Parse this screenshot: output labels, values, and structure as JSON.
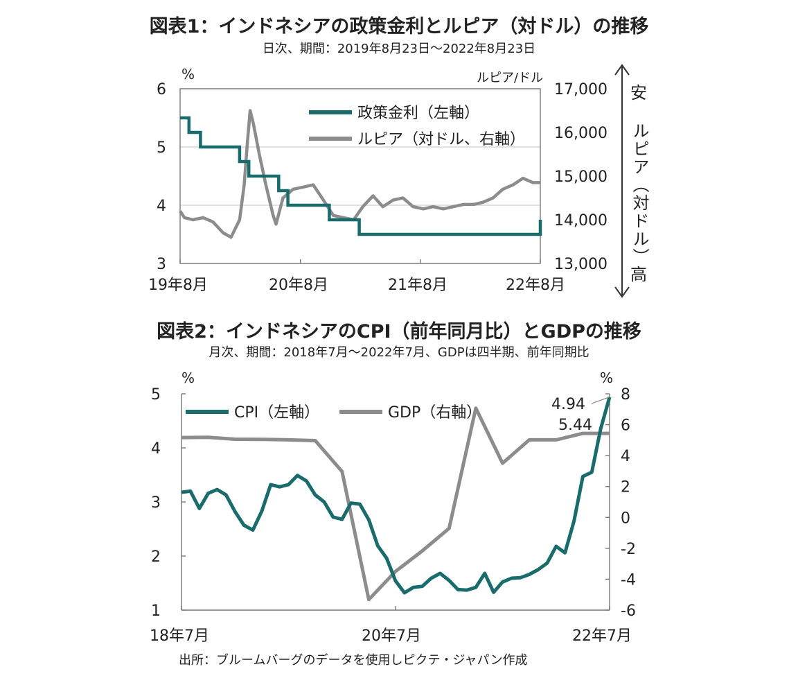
{
  "fig1": {
    "title": "図表1：インドネシアの政策金利とルピア（対ドル）の推移",
    "subtitle": "日次、期間：2019年8月23日～2022年8月23日",
    "chart_data": {
      "type": "line",
      "x_ticks": [
        "19年8月",
        "20年8月",
        "21年8月",
        "22年8月"
      ],
      "y_left": {
        "unit": "%",
        "ticks": [
          "3",
          "4",
          "5",
          "6"
        ],
        "range": [
          3,
          6
        ]
      },
      "y_right": {
        "unit": "ルピア/ドル",
        "ticks": [
          "13,000",
          "14,000",
          "15,000",
          "16,000",
          "17,000"
        ],
        "range": [
          13000,
          17000
        ]
      },
      "right_annotation_top": "安",
      "right_annotation_middle": "ルピア（対ドル）",
      "right_annotation_bottom": "高",
      "grid": true,
      "legend_position": "top-right",
      "colors": {
        "policy_rate": "#1a6b6b",
        "rupiah": "#8c8c8c"
      },
      "series": [
        {
          "name": "政策金利（左軸）",
          "axis": "left",
          "x": [
            "2019-08-23",
            "2019-09-19",
            "2019-09-19",
            "2019-10-24",
            "2019-10-24",
            "2020-02-20",
            "2020-02-20",
            "2020-03-19",
            "2020-03-19",
            "2020-06-18",
            "2020-06-18",
            "2020-07-16",
            "2020-07-16",
            "2020-11-19",
            "2020-11-19",
            "2021-02-18",
            "2021-02-18",
            "2022-08-23",
            "2022-08-23"
          ],
          "values": [
            5.5,
            5.5,
            5.25,
            5.25,
            5.0,
            5.0,
            4.75,
            4.75,
            4.5,
            4.5,
            4.25,
            4.25,
            4.0,
            4.0,
            3.75,
            3.75,
            3.5,
            3.5,
            3.75
          ]
        },
        {
          "name": "ルピア（対ドル、右軸）",
          "axis": "right",
          "x": [
            "2019-08-23",
            "2019-09-05",
            "2019-10-01",
            "2019-11-01",
            "2019-12-01",
            "2020-01-01",
            "2020-01-25",
            "2020-02-20",
            "2020-03-05",
            "2020-03-15",
            "2020-03-23",
            "2020-04-02",
            "2020-04-20",
            "2020-05-10",
            "2020-06-01",
            "2020-06-10",
            "2020-07-01",
            "2020-08-01",
            "2020-09-01",
            "2020-10-01",
            "2020-11-01",
            "2020-12-01",
            "2021-01-01",
            "2021-02-01",
            "2021-03-01",
            "2021-04-01",
            "2021-05-01",
            "2021-06-01",
            "2021-07-01",
            "2021-08-01",
            "2021-09-01",
            "2021-10-01",
            "2021-11-01",
            "2021-12-01",
            "2022-01-01",
            "2022-02-01",
            "2022-03-01",
            "2022-04-01",
            "2022-05-01",
            "2022-06-01",
            "2022-07-01",
            "2022-08-01",
            "2022-08-23"
          ],
          "values": [
            14200,
            14050,
            14000,
            14050,
            13950,
            13700,
            13600,
            14000,
            14800,
            15800,
            16500,
            16200,
            15500,
            14800,
            14100,
            13900,
            14500,
            14700,
            14750,
            14800,
            14450,
            14100,
            14050,
            14000,
            14300,
            14550,
            14300,
            14450,
            14500,
            14300,
            14250,
            14300,
            14250,
            14300,
            14350,
            14350,
            14400,
            14500,
            14700,
            14800,
            14950,
            14850,
            14850
          ]
        }
      ]
    }
  },
  "fig2": {
    "title": "図表2：インドネシアのCPI（前年同月比）とGDPの推移",
    "subtitle": "月次、期間：2018年7月～2022年7月、GDPは四半期、前年同期比",
    "chart_data": {
      "type": "line",
      "x_ticks": [
        "18年7月",
        "20年7月",
        "22年7月"
      ],
      "y_left": {
        "unit": "%",
        "ticks": [
          "1",
          "2",
          "3",
          "4",
          "5"
        ],
        "range": [
          1,
          5
        ]
      },
      "y_right": {
        "unit": "%",
        "ticks": [
          "-6",
          "-4",
          "-2",
          "0",
          "2",
          "4",
          "6",
          "8"
        ],
        "range": [
          -6,
          8
        ]
      },
      "grid": false,
      "legend_position": "top-left",
      "colors": {
        "cpi": "#1a6b6b",
        "gdp": "#8c8c8c"
      },
      "labels": {
        "cpi_last": "4.94",
        "gdp_last": "5.44"
      },
      "series": [
        {
          "name": "CPI（左軸）",
          "axis": "left",
          "x": [
            "2018-07",
            "2018-08",
            "2018-09",
            "2018-10",
            "2018-11",
            "2018-12",
            "2019-01",
            "2019-02",
            "2019-03",
            "2019-04",
            "2019-05",
            "2019-06",
            "2019-07",
            "2019-08",
            "2019-09",
            "2019-10",
            "2019-11",
            "2019-12",
            "2020-01",
            "2020-02",
            "2020-03",
            "2020-04",
            "2020-05",
            "2020-06",
            "2020-07",
            "2020-08",
            "2020-09",
            "2020-10",
            "2020-11",
            "2020-12",
            "2021-01",
            "2021-02",
            "2021-03",
            "2021-04",
            "2021-05",
            "2021-06",
            "2021-07",
            "2021-08",
            "2021-09",
            "2021-10",
            "2021-11",
            "2021-12",
            "2022-01",
            "2022-02",
            "2022-03",
            "2022-04",
            "2022-05",
            "2022-06",
            "2022-07"
          ],
          "values": [
            3.18,
            3.2,
            2.88,
            3.16,
            3.23,
            3.13,
            2.82,
            2.57,
            2.48,
            2.83,
            3.32,
            3.28,
            3.32,
            3.49,
            3.39,
            3.13,
            3.0,
            2.72,
            2.68,
            2.98,
            2.96,
            2.67,
            2.19,
            1.96,
            1.54,
            1.32,
            1.42,
            1.44,
            1.59,
            1.68,
            1.55,
            1.38,
            1.37,
            1.42,
            1.68,
            1.33,
            1.52,
            1.59,
            1.6,
            1.66,
            1.75,
            1.87,
            2.18,
            2.06,
            2.64,
            3.47,
            3.55,
            4.35,
            4.94
          ]
        },
        {
          "name": "GDP（右軸）",
          "axis": "right",
          "x": [
            "2018-07",
            "2018-10",
            "2019-01",
            "2019-04",
            "2019-07",
            "2019-10",
            "2020-01",
            "2020-04",
            "2020-07",
            "2020-10",
            "2021-01",
            "2021-04",
            "2021-07",
            "2021-10",
            "2022-01",
            "2022-04",
            "2022-07"
          ],
          "values": [
            5.17,
            5.18,
            5.06,
            5.05,
            5.02,
            4.97,
            2.97,
            -5.32,
            -3.49,
            -2.17,
            -0.71,
            7.07,
            3.51,
            5.02,
            5.02,
            5.44,
            5.44
          ]
        }
      ]
    }
  },
  "source": "出所：ブルームバーグのデータを使用しピクテ・ジャパン作成"
}
